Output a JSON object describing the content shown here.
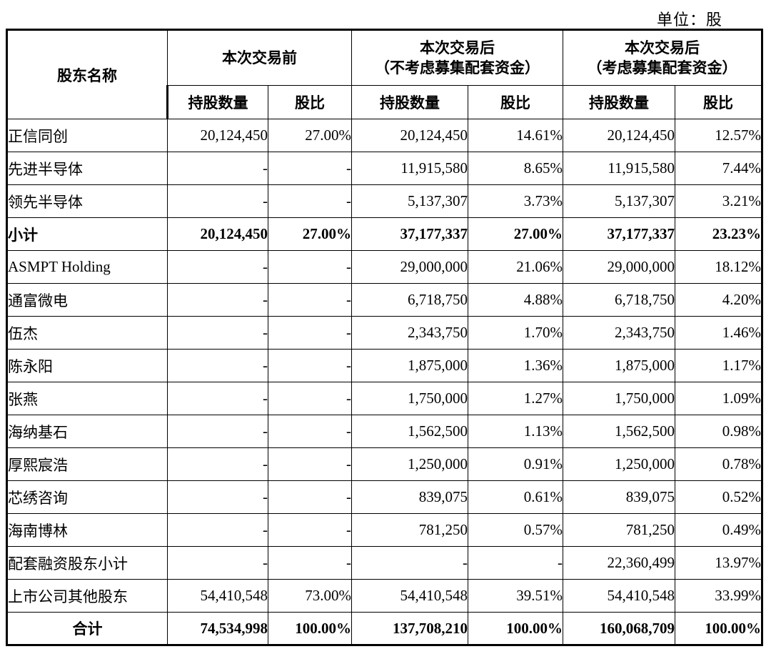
{
  "unit_label": "单位：股",
  "table": {
    "col1_header": "股东名称",
    "groups": [
      {
        "label": "本次交易前",
        "sub": ""
      },
      {
        "label": "本次交易后",
        "sub": "（不考虑募集配套资金）"
      },
      {
        "label": "本次交易后",
        "sub": "（考虑募集配套资金）"
      }
    ],
    "sub_headers": {
      "count": "持股数量",
      "ratio": "股比"
    },
    "rows": [
      {
        "name": "正信同创",
        "bold": false,
        "center": false,
        "values": [
          "20,124,450",
          "27.00%",
          "20,124,450",
          "14.61%",
          "20,124,450",
          "12.57%"
        ]
      },
      {
        "name": "先进半导体",
        "bold": false,
        "center": false,
        "values": [
          "-",
          "-",
          "11,915,580",
          "8.65%",
          "11,915,580",
          "7.44%"
        ]
      },
      {
        "name": "领先半导体",
        "bold": false,
        "center": false,
        "values": [
          "-",
          "-",
          "5,137,307",
          "3.73%",
          "5,137,307",
          "3.21%"
        ]
      },
      {
        "name": "小计",
        "bold": true,
        "center": false,
        "values": [
          "20,124,450",
          "27.00%",
          "37,177,337",
          "27.00%",
          "37,177,337",
          "23.23%"
        ]
      },
      {
        "name": "ASMPT Holding",
        "bold": false,
        "center": false,
        "values": [
          "-",
          "-",
          "29,000,000",
          "21.06%",
          "29,000,000",
          "18.12%"
        ]
      },
      {
        "name": "通富微电",
        "bold": false,
        "center": false,
        "values": [
          "-",
          "-",
          "6,718,750",
          "4.88%",
          "6,718,750",
          "4.20%"
        ]
      },
      {
        "name": "伍杰",
        "bold": false,
        "center": false,
        "values": [
          "-",
          "-",
          "2,343,750",
          "1.70%",
          "2,343,750",
          "1.46%"
        ]
      },
      {
        "name": "陈永阳",
        "bold": false,
        "center": false,
        "values": [
          "-",
          "-",
          "1,875,000",
          "1.36%",
          "1,875,000",
          "1.17%"
        ]
      },
      {
        "name": "张燕",
        "bold": false,
        "center": false,
        "values": [
          "-",
          "-",
          "1,750,000",
          "1.27%",
          "1,750,000",
          "1.09%"
        ]
      },
      {
        "name": "海纳基石",
        "bold": false,
        "center": false,
        "values": [
          "-",
          "-",
          "1,562,500",
          "1.13%",
          "1,562,500",
          "0.98%"
        ]
      },
      {
        "name": "厚熙宸浩",
        "bold": false,
        "center": false,
        "values": [
          "-",
          "-",
          "1,250,000",
          "0.91%",
          "1,250,000",
          "0.78%"
        ]
      },
      {
        "name": "芯绣咨询",
        "bold": false,
        "center": false,
        "values": [
          "-",
          "-",
          "839,075",
          "0.61%",
          "839,075",
          "0.52%"
        ]
      },
      {
        "name": "海南博林",
        "bold": false,
        "center": false,
        "values": [
          "-",
          "-",
          "781,250",
          "0.57%",
          "781,250",
          "0.49%"
        ]
      },
      {
        "name": "配套融资股东小计",
        "bold": false,
        "center": false,
        "values": [
          "-",
          "-",
          "-",
          "-",
          "22,360,499",
          "13.97%"
        ]
      },
      {
        "name": "上市公司其他股东",
        "bold": false,
        "center": false,
        "values": [
          "54,410,548",
          "73.00%",
          "54,410,548",
          "39.51%",
          "54,410,548",
          "33.99%"
        ]
      },
      {
        "name": "合计",
        "bold": true,
        "center": true,
        "values": [
          "74,534,998",
          "100.00%",
          "137,708,210",
          "100.00%",
          "160,068,709",
          "100.00%"
        ]
      }
    ]
  }
}
